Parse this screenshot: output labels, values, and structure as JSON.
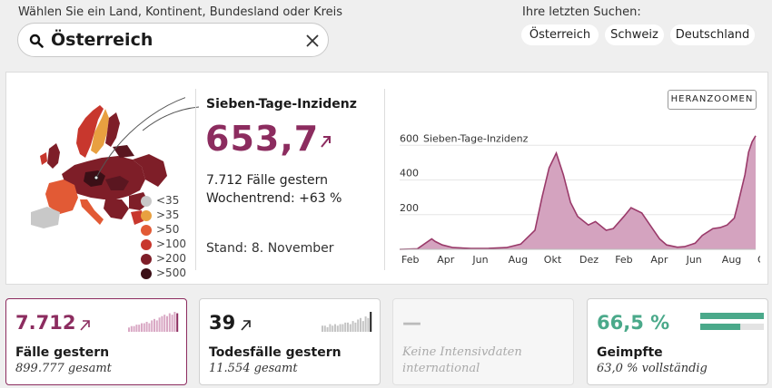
{
  "search": {
    "label": "Wählen Sie ein Land, Kontinent, Bundesland oder Kreis",
    "value": "Österreich"
  },
  "recent": {
    "label": "Ihre letzten Suchen:",
    "items": [
      "Österreich",
      "Schweiz",
      "Deutschland"
    ]
  },
  "legend": [
    "<35",
    ">35",
    ">50",
    ">100",
    ">200",
    ">500"
  ],
  "legend_colors": [
    "#c8c8c8",
    "#e8a040",
    "#e25a35",
    "#c8372d",
    "#7e1e28",
    "#3b0f16"
  ],
  "incidence": {
    "title": "Sieben-Tage-Inzidenz",
    "value": "653,7",
    "cases_yesterday": "7.712 Fälle gestern",
    "weekly_trend": "Wochentrend: +63 %",
    "stand": "Stand: 8. November"
  },
  "zoom_button": "HERANZOOMEN",
  "chart_data": {
    "type": "area",
    "ylabel": "Sieben-Tage-Inzidenz",
    "y_ticks": [
      "600",
      "400",
      "200"
    ],
    "ylim": [
      0,
      680
    ],
    "x_tick_labels": [
      "Feb",
      "Apr",
      "Jun",
      "Aug",
      "Okt",
      "Dez",
      "Feb",
      "Apr",
      "Jun",
      "Aug",
      "Okt"
    ],
    "x": [
      0,
      1,
      1.8,
      2,
      2.4,
      3,
      4,
      5,
      6,
      6.8,
      7.6,
      8,
      8.4,
      8.8,
      9.2,
      9.6,
      10,
      10.6,
      11,
      11.6,
      12,
      12.6,
      13,
      13.6,
      14,
      14.6,
      15,
      15.6,
      16,
      16.6,
      17,
      17.6,
      18,
      18.4,
      18.8,
      19,
      19.4,
      19.6,
      19.8,
      20
    ],
    "values": [
      0,
      3,
      60,
      45,
      25,
      10,
      5,
      6,
      10,
      30,
      110,
      300,
      470,
      555,
      430,
      270,
      190,
      140,
      160,
      110,
      120,
      190,
      240,
      210,
      150,
      60,
      25,
      12,
      15,
      35,
      80,
      120,
      125,
      140,
      180,
      260,
      430,
      560,
      620,
      655
    ],
    "fill": "#d4a3bf",
    "stroke": "#9a3a6a",
    "grid": true
  },
  "cards": {
    "cases": {
      "value": "7.712",
      "label": "Fälle gestern",
      "sub": "899.777 gesamt"
    },
    "deaths": {
      "value": "39",
      "label": "Todesfälle gestern",
      "sub": "11.554 gesamt"
    },
    "icu": {
      "value": "—",
      "sub_line1": "Keine Intensivdaten",
      "sub_line2": "international"
    },
    "vaccinated": {
      "value": "66,5 %",
      "label": "Geimpfte",
      "sub": "63,0 % vollständig",
      "first_dose": 0.665,
      "full_dose": 0.63
    }
  },
  "cases_mini": [
    3,
    4,
    4,
    5,
    5,
    6,
    6,
    7,
    6,
    8,
    9,
    8,
    10,
    11,
    12,
    11,
    13,
    12,
    14,
    13
  ],
  "deaths_mini": [
    4,
    4,
    3,
    5,
    4,
    5,
    4,
    5,
    5,
    6,
    6,
    5,
    7,
    6,
    8,
    9,
    7,
    10,
    9,
    13
  ],
  "colors": {
    "accent": "#8c2c5f",
    "green": "#4aa98a"
  }
}
